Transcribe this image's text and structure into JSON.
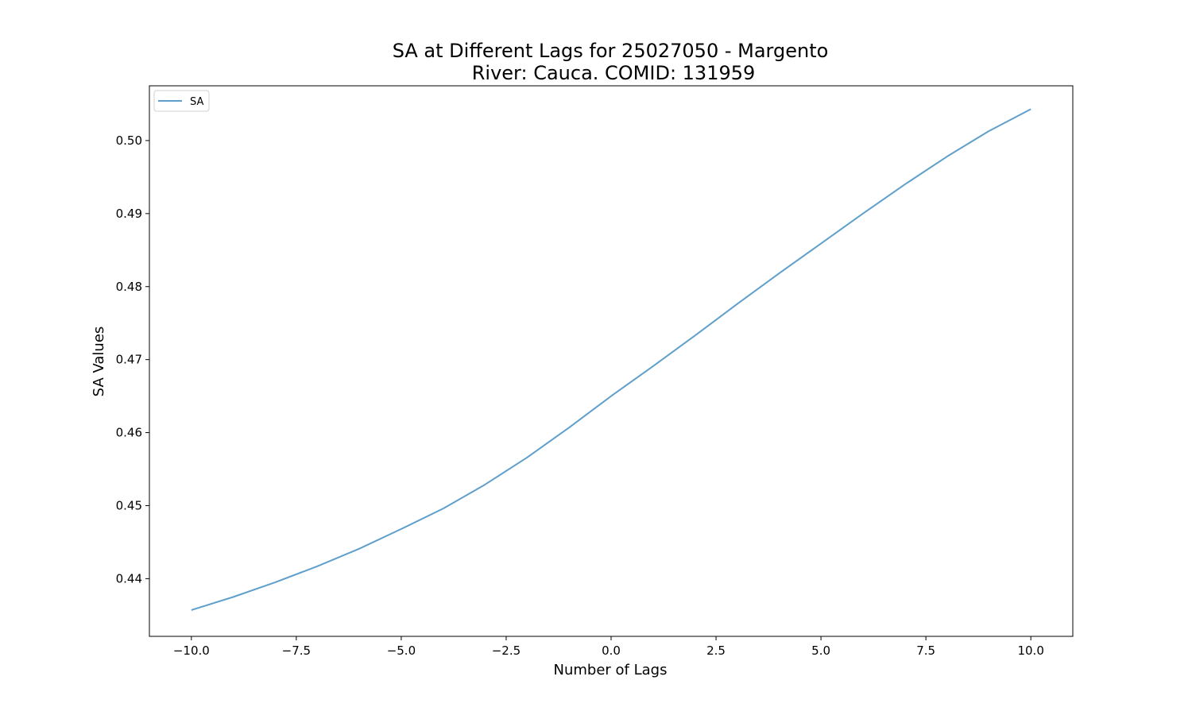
{
  "chart_data": {
    "type": "line",
    "title_line1": "SA at Different Lags for 25027050 - Margento",
    "title_line2": "River: Cauca. COMID: 131959",
    "xlabel": "Number of Lags",
    "ylabel": "SA Values",
    "xlim": [
      -11,
      11
    ],
    "ylim": [
      0.4321,
      0.5075
    ],
    "x_ticks": [
      -10.0,
      -7.5,
      -5.0,
      -2.5,
      0.0,
      2.5,
      5.0,
      7.5,
      10.0
    ],
    "x_tick_labels": [
      "−10.0",
      "−7.5",
      "−5.0",
      "−2.5",
      "0.0",
      "2.5",
      "5.0",
      "7.5",
      "10.0"
    ],
    "y_ticks": [
      0.44,
      0.45,
      0.46,
      0.47,
      0.48,
      0.49,
      0.5
    ],
    "y_tick_labels": [
      "0.44",
      "0.45",
      "0.46",
      "0.47",
      "0.48",
      "0.49",
      "0.50"
    ],
    "grid": false,
    "legend_position": "upper-left",
    "series": [
      {
        "name": "SA",
        "color": "#5f9fcb",
        "x": [
          -10,
          -9,
          -8,
          -7,
          -6,
          -5,
          -4,
          -3,
          -2,
          -1,
          0,
          1,
          2,
          3,
          4,
          5,
          6,
          7,
          8,
          9,
          10
        ],
        "values": [
          0.4357,
          0.4375,
          0.4395,
          0.4417,
          0.4441,
          0.4468,
          0.4496,
          0.4529,
          0.4566,
          0.4607,
          0.465,
          0.4691,
          0.4733,
          0.4776,
          0.4818,
          0.4859,
          0.49,
          0.494,
          0.4978,
          0.5013,
          0.5043
        ]
      }
    ]
  }
}
